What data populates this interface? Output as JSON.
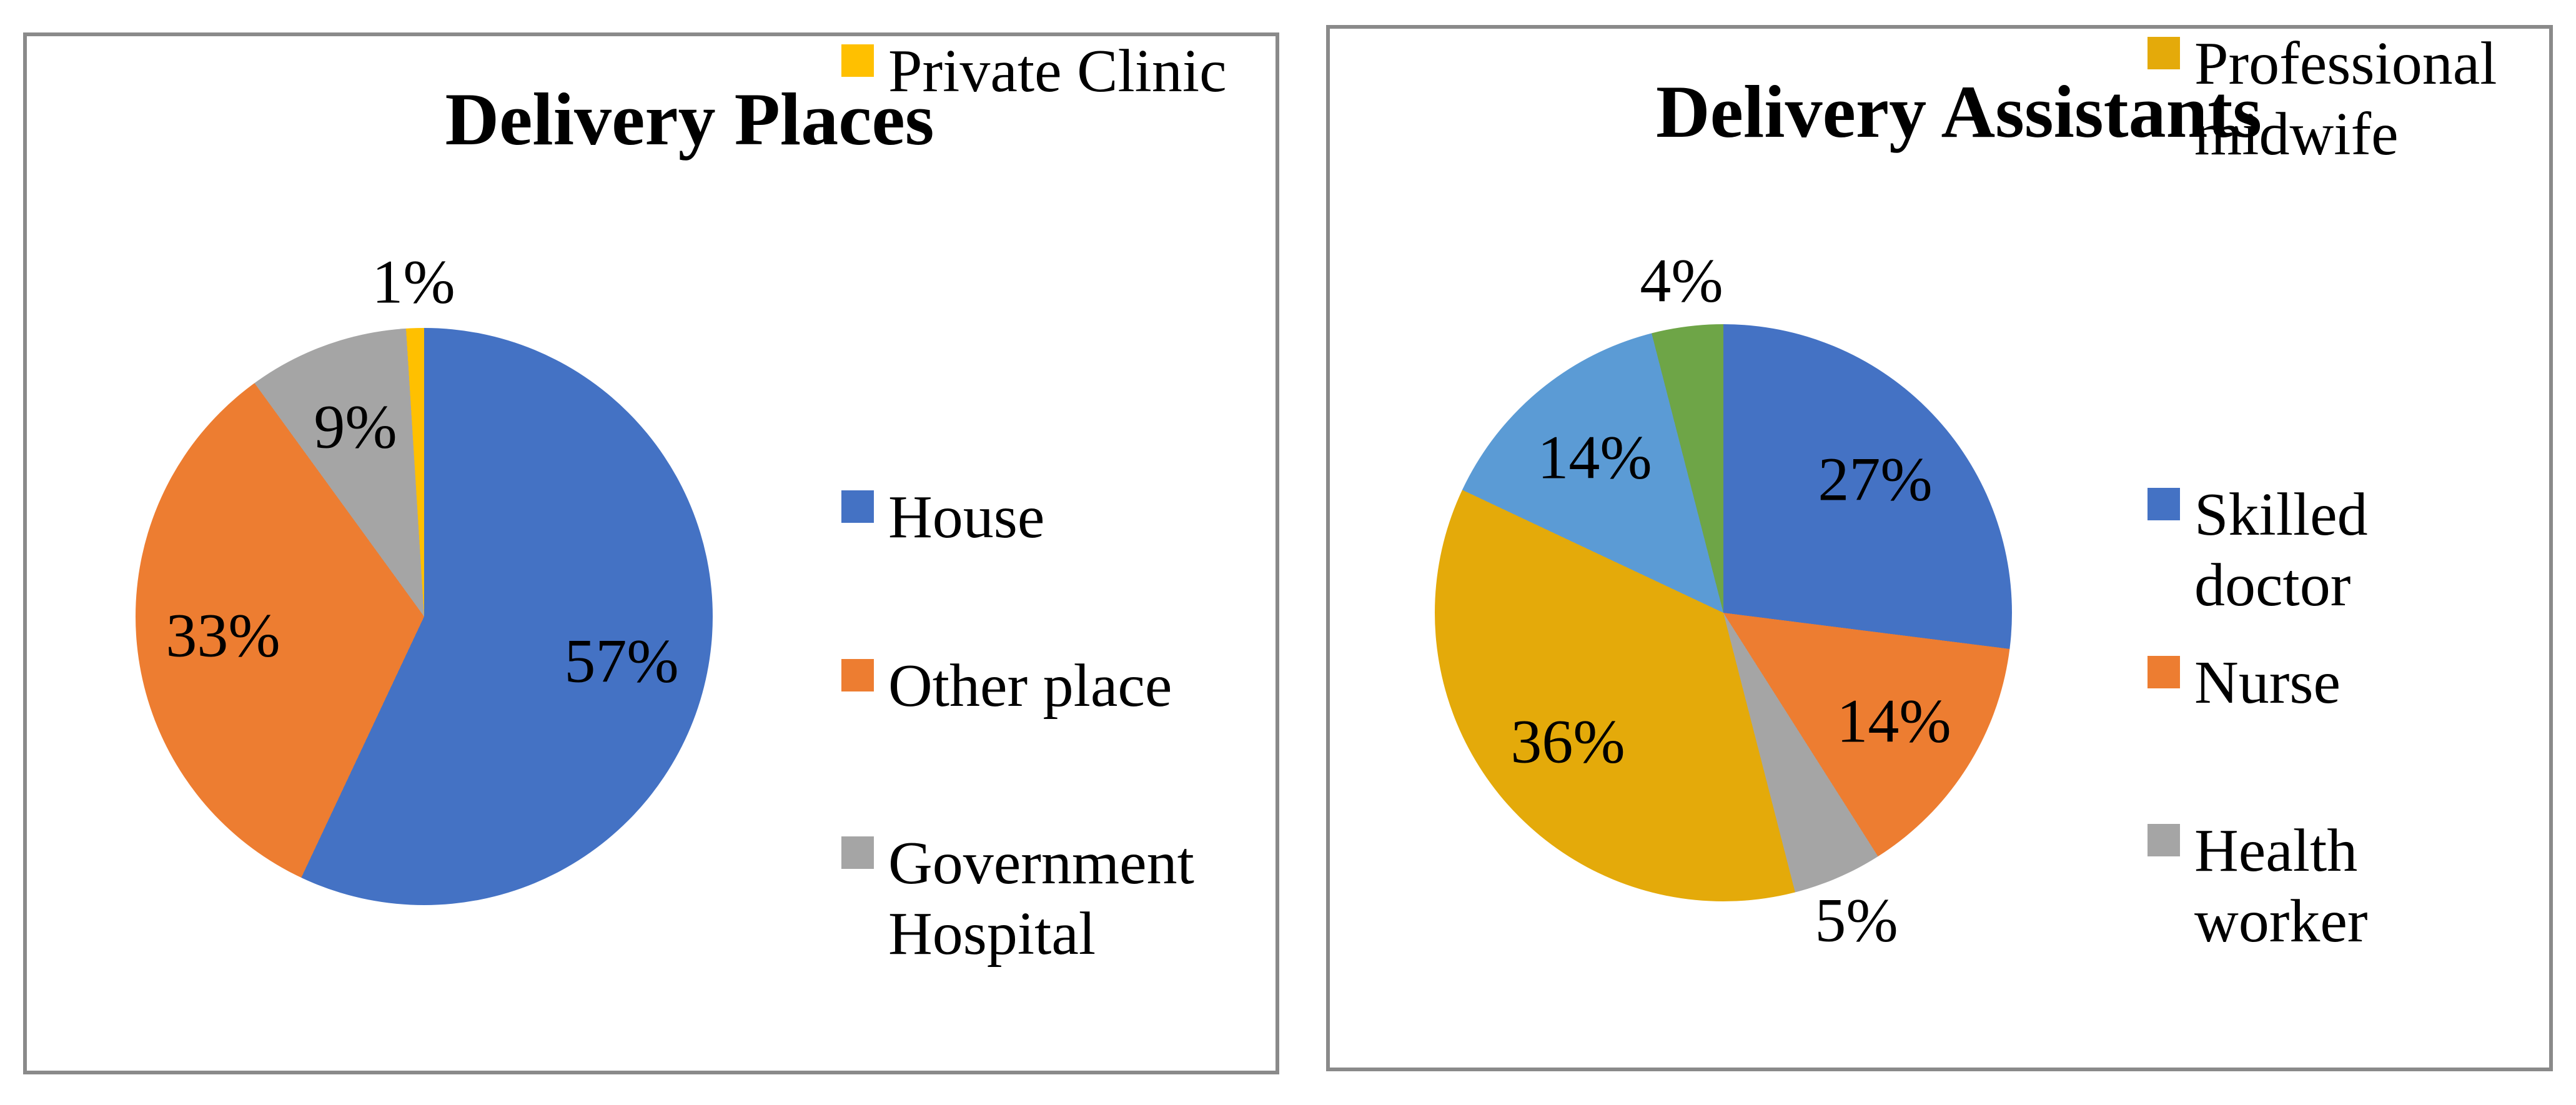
{
  "page": {
    "background_color": "#ffffff",
    "panel_border_color": "#8a8a8a"
  },
  "palette": {
    "blue": "#4472c4",
    "orange": "#ed7d31",
    "gray": "#a5a5a5",
    "yellow": "#ffc000",
    "gold": "#e4aa0a",
    "light_blue": "#5b9bd5",
    "green": "#6ea547"
  },
  "charts": [
    {
      "title": "Delivery Places",
      "slices": [
        {
          "name": "House",
          "value": 57,
          "label": "57%",
          "color": "#4472c4"
        },
        {
          "name": "Other place",
          "value": 33,
          "label": "33%",
          "color": "#ed7d31"
        },
        {
          "name": "Government Hospital",
          "value": 9,
          "label": "9%",
          "color": "#a5a5a5"
        },
        {
          "name": "Private Clinic",
          "value": 1,
          "label": "1%",
          "color": "#ffc000"
        }
      ],
      "legend": [
        {
          "lines": [
            "House"
          ],
          "color": "#4472c4"
        },
        {
          "lines": [
            "Other place"
          ],
          "color": "#ed7d31"
        },
        {
          "lines": [
            "Government",
            "Hospital"
          ],
          "color": "#a5a5a5"
        },
        {
          "lines": [
            "Private Clinic"
          ],
          "color": "#ffc000"
        }
      ]
    },
    {
      "title": "Delivery Assistants",
      "slices": [
        {
          "name": "Skilled doctor",
          "value": 27,
          "label": "27%",
          "color": "#4472c4"
        },
        {
          "name": "Nurse",
          "value": 14,
          "label": "14%",
          "color": "#ed7d31"
        },
        {
          "name": "Health worker",
          "value": 5,
          "label": "5%",
          "color": "#a5a5a5"
        },
        {
          "name": "Professional midwife",
          "value": 36,
          "label": "36%",
          "color": "#e4aa0a"
        },
        {
          "name": "",
          "value": 14,
          "label": "14%",
          "color": "#5b9bd5"
        },
        {
          "name": "",
          "value": 4,
          "label": "4%",
          "color": "#6ea547"
        }
      ],
      "legend": [
        {
          "lines": [
            "Skilled",
            "doctor"
          ],
          "color": "#4472c4"
        },
        {
          "lines": [
            "Nurse"
          ],
          "color": "#ed7d31"
        },
        {
          "lines": [
            "Health",
            "worker"
          ],
          "color": "#a5a5a5"
        },
        {
          "lines": [
            "Professional",
            "midwife"
          ],
          "color": "#e4aa0a"
        }
      ]
    }
  ],
  "chart_data": [
    {
      "type": "pie",
      "title": "Delivery Places",
      "labels": [
        "House",
        "Other place",
        "Government Hospital",
        "Private Clinic"
      ],
      "values": [
        57,
        33,
        9,
        1
      ],
      "unit": "%",
      "start_angle_deg": 0,
      "direction": "clockwise",
      "legend_position": "right",
      "data_labels": "percent"
    },
    {
      "type": "pie",
      "title": "Delivery Assistants",
      "labels": [
        "Skilled doctor",
        "Nurse",
        "Health worker",
        "Professional midwife",
        "",
        ""
      ],
      "values": [
        27,
        14,
        5,
        36,
        14,
        4
      ],
      "unit": "%",
      "start_angle_deg": 0,
      "direction": "clockwise",
      "legend_position": "right",
      "data_labels": "percent"
    }
  ]
}
